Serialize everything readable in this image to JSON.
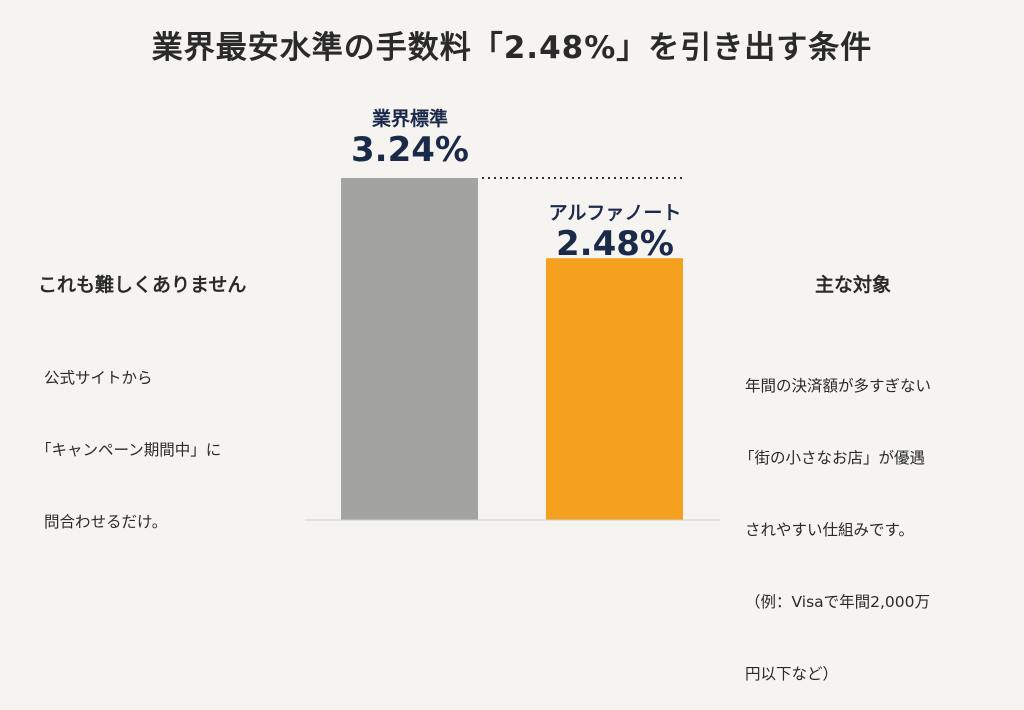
{
  "title": "業界最安水準の手数料「2.48%」を引き出す条件",
  "chart_data": {
    "type": "bar",
    "categories": [
      "業界標準",
      "アルフ ァノート"
    ],
    "values": [
      3.24,
      2.48
    ],
    "value_labels": [
      "3.24%",
      "2.48%"
    ],
    "ylim": [
      0,
      3.24
    ],
    "colors": [
      "#a3a3a1",
      "#f5a01e"
    ],
    "reference_line": {
      "value": 3.24,
      "style": "dotted"
    },
    "grid": false
  },
  "labels": {
    "bar0": "業界標準",
    "bar1": "アルファノート"
  },
  "left": {
    "heading": "これも難しくありません",
    "lines": [
      "公式サイトから",
      "「キャンペーン期間中」に",
      "問合わせるだけ。"
    ]
  },
  "right": {
    "heading": "主な対象",
    "lines": [
      "年間の決済額が多すぎない",
      "「街の小さなお店」が優遇",
      "されやすい仕組みです。",
      "（例：Visaで年間2,000万",
      "円以下など）"
    ]
  }
}
